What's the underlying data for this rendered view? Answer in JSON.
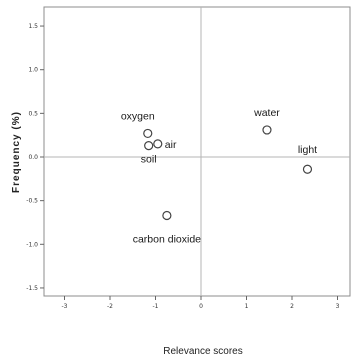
{
  "chart_data": {
    "type": "scatter",
    "title": "",
    "xlabel": "Relevance scores",
    "ylabel": "Frequency (%)",
    "xlim": [
      -3.3,
      3.4
    ],
    "ylim": [
      -1.65,
      1.6
    ],
    "x_ticks": [
      "-3",
      "-2",
      "-1",
      "0",
      "1",
      "2",
      "3"
    ],
    "y_ticks": [
      "1.5",
      "1.0",
      "0.5",
      "0.0",
      "-0.5",
      "-1.0",
      "-1.5"
    ],
    "grid": false,
    "reference_lines": {
      "x": 0,
      "y": 0
    },
    "points": [
      {
        "label": "oxygen",
        "x": -1.17,
        "y": 0.27
      },
      {
        "label": "air",
        "x": -0.95,
        "y": 0.15
      },
      {
        "label": "soil",
        "x": -1.15,
        "y": 0.13
      },
      {
        "label": "carbon dioxide",
        "x": -0.75,
        "y": -0.67
      },
      {
        "label": "water",
        "x": 1.45,
        "y": 0.31
      },
      {
        "label": "light",
        "x": 2.34,
        "y": -0.14
      }
    ]
  }
}
